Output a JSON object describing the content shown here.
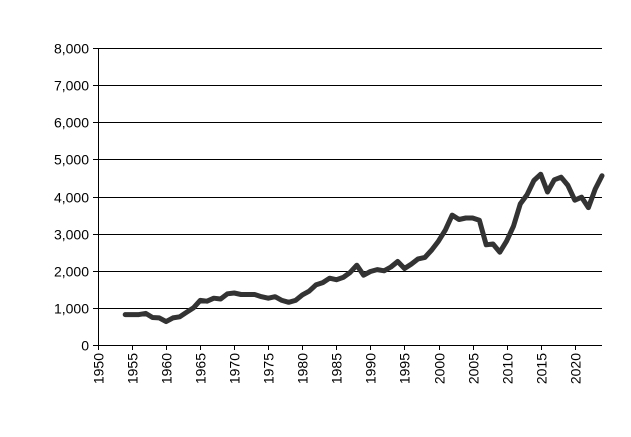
{
  "chart_data": {
    "type": "line",
    "title": "",
    "xlabel": "",
    "ylabel": "",
    "xlim": [
      1950,
      2024
    ],
    "ylim": [
      0,
      8000
    ],
    "x_ticks": [
      1950,
      1955,
      1960,
      1965,
      1970,
      1975,
      1980,
      1985,
      1990,
      1995,
      2000,
      2005,
      2010,
      2015,
      2020
    ],
    "x_tick_labels": [
      "1950",
      "1955",
      "1960",
      "1965",
      "1970",
      "1975",
      "1980",
      "1985",
      "1990",
      "1995",
      "2000",
      "2005",
      "2010",
      "2015",
      "2020"
    ],
    "y_ticks": [
      0,
      1000,
      2000,
      3000,
      4000,
      5000,
      6000,
      7000,
      8000
    ],
    "y_tick_labels": [
      "0",
      "1,000",
      "2,000",
      "3,000",
      "4,000",
      "5,000",
      "6,000",
      "7,000",
      "8,000"
    ],
    "grid": "horizontal",
    "legend": "none",
    "line_color": "#333333",
    "series": [
      {
        "x": [
          1954,
          1955,
          1956,
          1957,
          1958,
          1959,
          1960,
          1961,
          1962,
          1963,
          1964,
          1965,
          1966,
          1967,
          1968,
          1969,
          1970,
          1971,
          1972,
          1973,
          1974,
          1975,
          1976,
          1977,
          1978,
          1979,
          1980,
          1981,
          1982,
          1983,
          1984,
          1985,
          1986,
          1987,
          1988,
          1989,
          1990,
          1991,
          1992,
          1993,
          1994,
          1995,
          1996,
          1997,
          1998,
          1999,
          2000,
          2001,
          2002,
          2003,
          2004,
          2005,
          2006,
          2007,
          2008,
          2009,
          2010,
          2011,
          2012,
          2013,
          2014,
          2015,
          2016,
          2017,
          2018,
          2019,
          2020,
          2021,
          2022,
          2023,
          2024
        ],
        "values": [
          820,
          820,
          820,
          850,
          740,
          730,
          630,
          730,
          760,
          880,
          1000,
          1200,
          1180,
          1260,
          1240,
          1380,
          1400,
          1360,
          1360,
          1360,
          1300,
          1260,
          1300,
          1200,
          1150,
          1200,
          1350,
          1450,
          1620,
          1680,
          1800,
          1760,
          1820,
          1950,
          2150,
          1880,
          1980,
          2030,
          2000,
          2100,
          2250,
          2060,
          2180,
          2320,
          2360,
          2560,
          2800,
          3100,
          3500,
          3380,
          3420,
          3420,
          3360,
          2700,
          2720,
          2500,
          2800,
          3200,
          3800,
          4050,
          4430,
          4600,
          4120,
          4450,
          4520,
          4300,
          3900,
          3980,
          3700,
          4200,
          4560
        ]
      }
    ]
  }
}
